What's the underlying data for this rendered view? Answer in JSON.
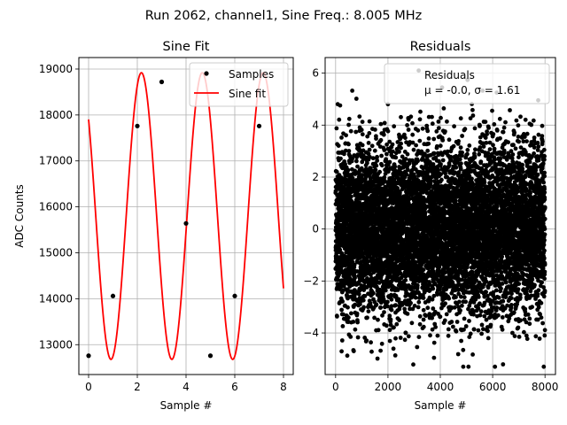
{
  "figure": {
    "suptitle": "Run 2062, channel1, Sine Freq.: 8.005 MHz"
  },
  "chart_data": [
    {
      "type": "line",
      "title": "Sine Fit",
      "xlabel": "Sample #",
      "ylabel": "ADC Counts",
      "xlim": [
        -0.4,
        8.4
      ],
      "ylim": [
        12350,
        19250
      ],
      "xticks": [
        0,
        2,
        4,
        6,
        8
      ],
      "yticks": [
        13000,
        14000,
        15000,
        16000,
        17000,
        18000,
        19000
      ],
      "grid": true,
      "legend": "top-right",
      "series": [
        {
          "name": "Samples",
          "style": "points",
          "color": "#000000",
          "x": [
            0,
            1,
            2,
            3,
            4,
            5,
            6,
            7
          ],
          "y": [
            12760,
            14060,
            17760,
            18720,
            15640,
            12760,
            14060,
            17760
          ]
        },
        {
          "name": "Sine fit",
          "style": "line",
          "color": "#ff0000",
          "function": {
            "kind": "sine",
            "offset": 15800,
            "amplitude": 3120,
            "cycles_per_sample": 0.40025,
            "phase_rad": -3.8815,
            "x_range": [
              0,
              8
            ]
          }
        }
      ]
    },
    {
      "type": "scatter",
      "title": "Residuals",
      "xlabel": "Sample #",
      "ylabel": "",
      "xlim": [
        -400,
        8400
      ],
      "ylim": [
        -5.6,
        6.6
      ],
      "xticks": [
        0,
        2000,
        4000,
        6000,
        8000
      ],
      "yticks": [
        -4,
        -2,
        0,
        2,
        4,
        6
      ],
      "grid": true,
      "legend": "top-right",
      "series": [
        {
          "name": "Residuals",
          "color": "#000000",
          "n_points": 8000,
          "x_range": [
            0,
            8000
          ],
          "mean": -0.0,
          "std": 1.61
        }
      ],
      "legend_stats": "μ = -0.0, σ = 1.61"
    }
  ]
}
